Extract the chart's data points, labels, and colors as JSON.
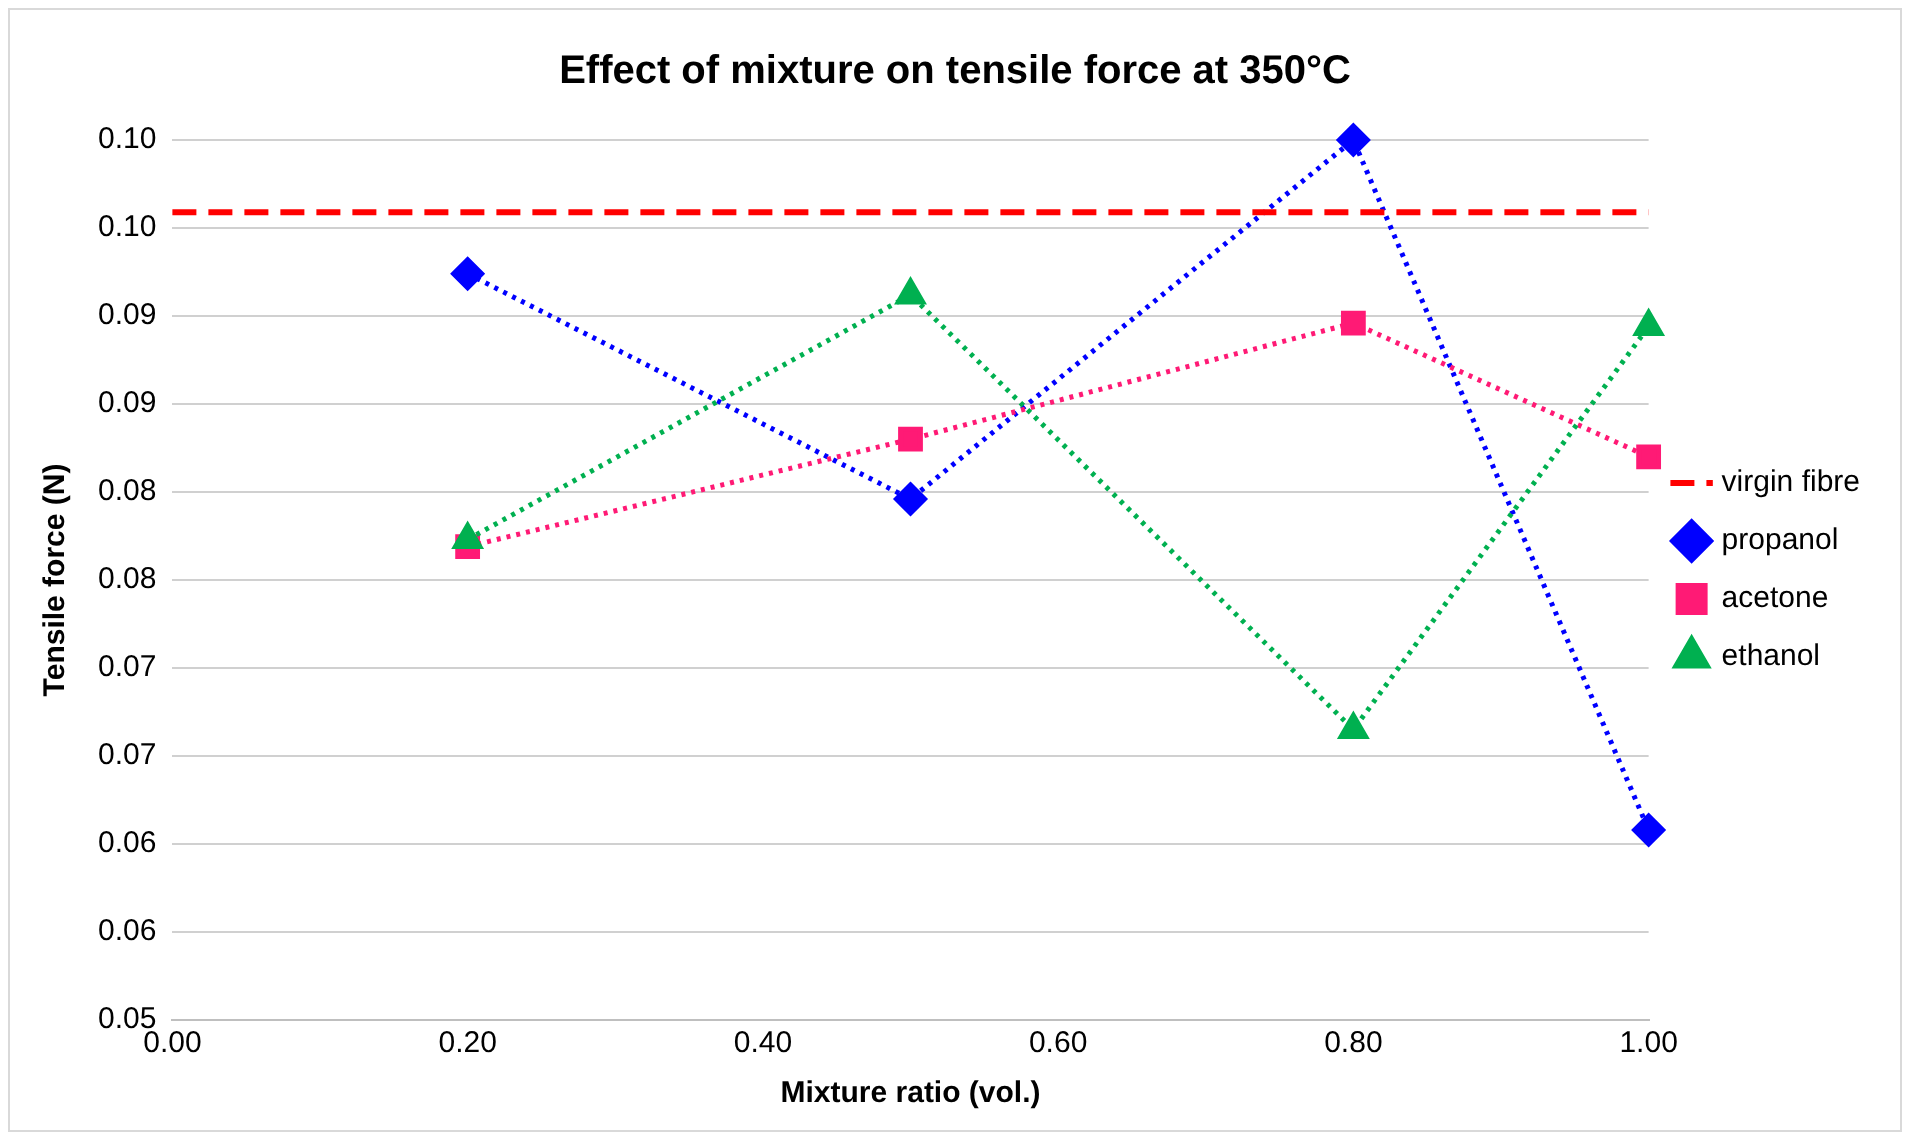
{
  "chart_data": {
    "type": "line",
    "title": "Effect of mixture on tensile force at 350°C",
    "xlabel": "Mixture ratio (vol.)",
    "ylabel": "Tensile force (N)",
    "x": [
      0.2,
      0.5,
      0.8,
      1.0
    ],
    "series": [
      {
        "name": "propanol",
        "color": "#0000ff",
        "marker": "diamond",
        "line_style": "dotted",
        "values": [
          0.0924,
          0.0796,
          0.1,
          0.0608
        ]
      },
      {
        "name": "acetone",
        "color": "#ff1a75",
        "marker": "square",
        "line_style": "dotted",
        "values": [
          0.0769,
          0.083,
          0.0896,
          0.082
        ]
      },
      {
        "name": "ethanol",
        "color": "#00b050",
        "marker": "triangle",
        "line_style": "dotted",
        "values": [
          0.0773,
          0.0912,
          0.0665,
          0.0894
        ]
      }
    ],
    "ref_lines": [
      {
        "axis": "y",
        "value": 0.0959,
        "label": "virgin fibre",
        "color": "#ff0000",
        "line_style": "dashed"
      }
    ],
    "xlim": [
      0,
      1
    ],
    "xticks": [
      {
        "value": 0,
        "label": "0.00"
      },
      {
        "value": 0.2,
        "label": "0.20"
      },
      {
        "value": 0.4,
        "label": "0.40"
      },
      {
        "value": 0.6,
        "label": "0.60"
      },
      {
        "value": 0.8,
        "label": "0.80"
      },
      {
        "value": 1,
        "label": "1.00"
      }
    ],
    "ylim": [
      0.05,
      0.1
    ],
    "yticks": [
      {
        "value": 0.05,
        "label": "0.05"
      },
      {
        "value": 0.055,
        "label": "0.06"
      },
      {
        "value": 0.06,
        "label": "0.06"
      },
      {
        "value": 0.065,
        "label": "0.07"
      },
      {
        "value": 0.07,
        "label": "0.07"
      },
      {
        "value": 0.075,
        "label": "0.08"
      },
      {
        "value": 0.08,
        "label": "0.08"
      },
      {
        "value": 0.085,
        "label": "0.09"
      },
      {
        "value": 0.09,
        "label": "0.09"
      },
      {
        "value": 0.095,
        "label": "0.10"
      },
      {
        "value": 0.1,
        "label": "0.10"
      }
    ],
    "grid": "y",
    "legend": "right"
  }
}
